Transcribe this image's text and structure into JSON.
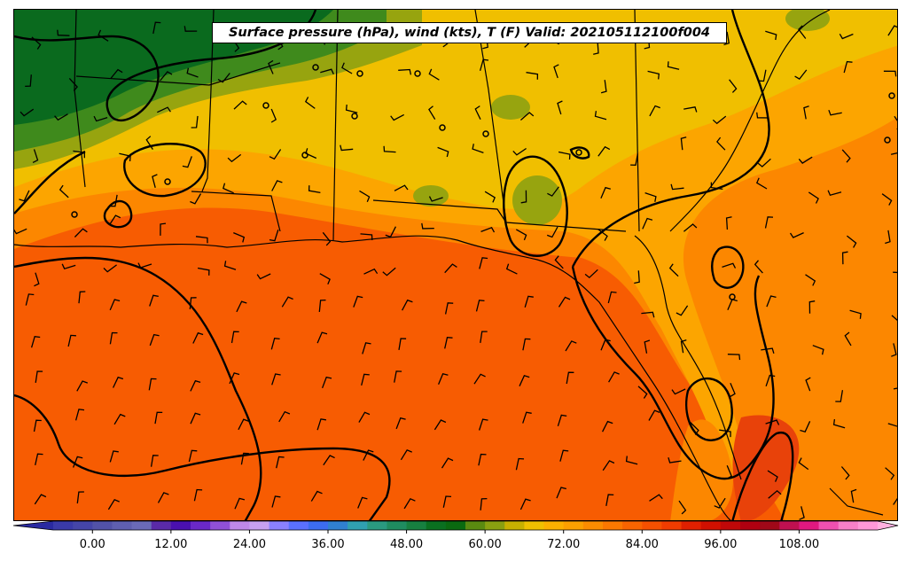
{
  "title": "Surface pressure (hPa), wind (kts), T (F) Valid: 2021051121​00f004",
  "colorbar": {
    "tick_labels": [
      "0.00",
      "12.00",
      "24.00",
      "36.00",
      "48.00",
      "60.00",
      "72.00",
      "84.00",
      "96.00",
      "108.00"
    ],
    "range": [
      -6,
      120
    ],
    "bins": 42
  },
  "colors": {
    "dark_green": "#0a6a1e",
    "mid_green": "#3f8a1c",
    "olive": "#97a40f",
    "yellow": "#f0bf00",
    "light_orange": "#fca500",
    "orange": "#fc8700",
    "dark_orange": "#f75c02",
    "red_orange": "#e8420a"
  }
}
